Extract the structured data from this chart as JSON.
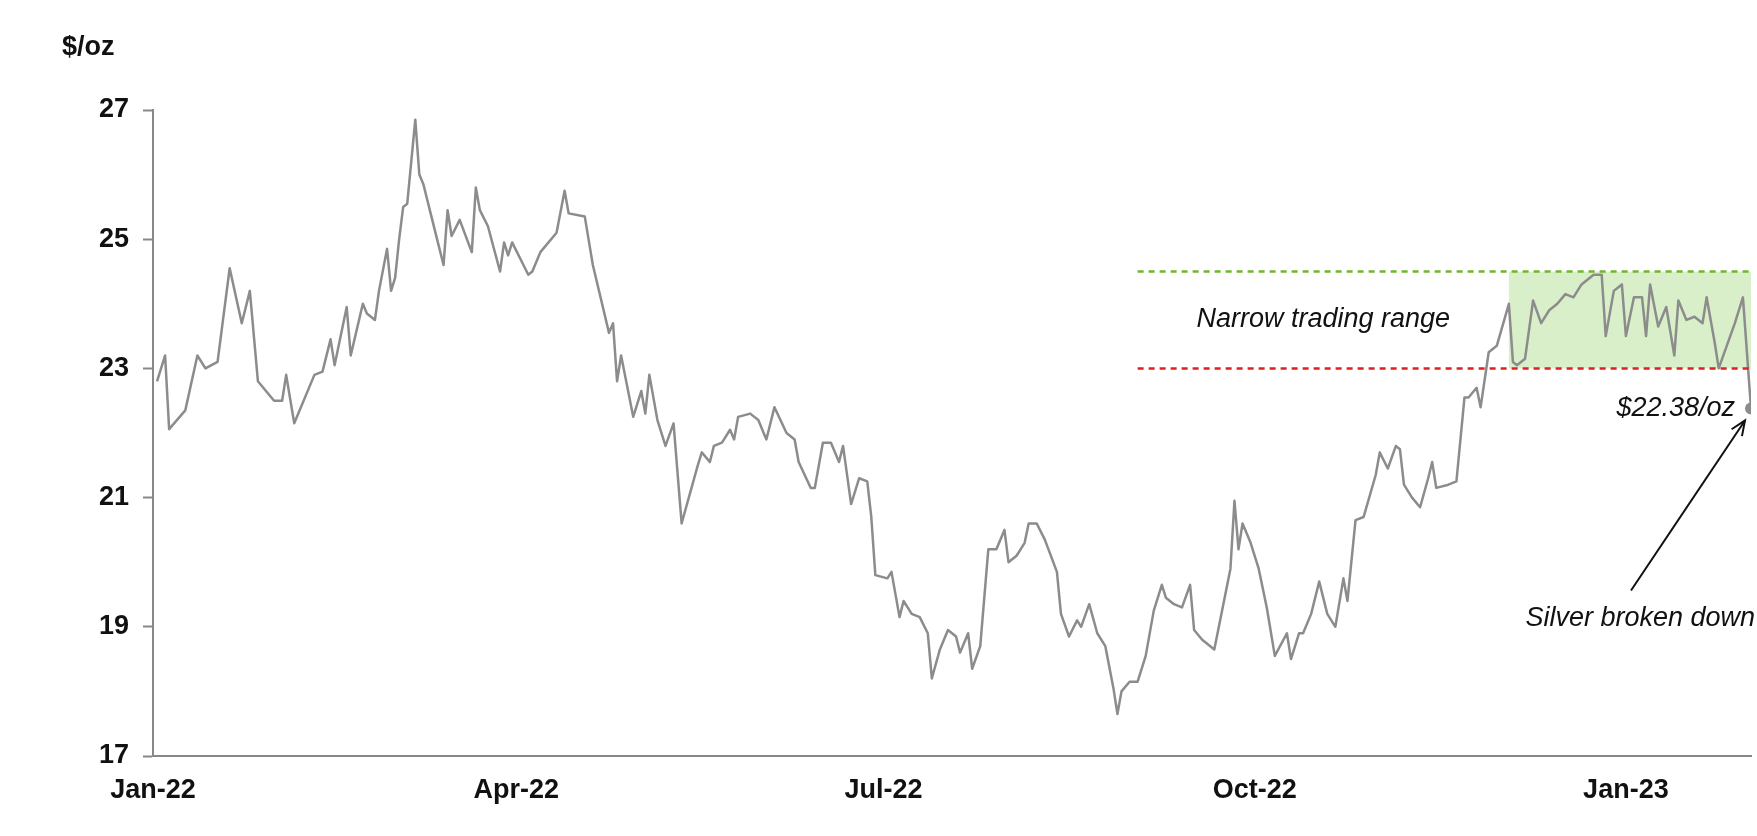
{
  "chart_data": {
    "type": "line",
    "ylabel": "$/oz",
    "xlim": [
      "2022-01-01",
      "2023-02-01"
    ],
    "xticks": [
      {
        "value": "2022-01-01",
        "label": "Jan-22"
      },
      {
        "value": "2022-04-01",
        "label": "Apr-22"
      },
      {
        "value": "2022-07-01",
        "label": "Jul-22"
      },
      {
        "value": "2022-10-01",
        "label": "Oct-22"
      },
      {
        "value": "2023-01-01",
        "label": "Jan-23"
      }
    ],
    "ylim": [
      17,
      27
    ],
    "yticks": [
      17,
      19,
      21,
      23,
      25,
      27
    ],
    "grid": false,
    "legend": false,
    "bands": [
      {
        "axis": "x",
        "from": "2022-12-03",
        "to": "2023-02-01",
        "color": "#d9efc9"
      }
    ],
    "series": [
      {
        "type": "line",
        "color": "#70b62c",
        "line_style": "dashed",
        "x": [
          "2022-09-02",
          "2023-02-01"
        ],
        "values": [
          24.5,
          24.5
        ]
      },
      {
        "type": "line",
        "color": "#e02020",
        "line_style": "dashed",
        "x": [
          "2022-09-02",
          "2023-02-01"
        ],
        "values": [
          23,
          23
        ]
      },
      {
        "type": "line",
        "color": "#8c8c8c",
        "line_style": "solid",
        "x": [
          "2022-01-02",
          "2022-01-04",
          "2022-01-05",
          "2022-01-09",
          "2022-01-12",
          "2022-01-14",
          "2022-01-17",
          "2022-01-20",
          "2022-01-23",
          "2022-01-25",
          "2022-01-27",
          "2022-01-31",
          "2022-02-02",
          "2022-02-03",
          "2022-02-05",
          "2022-02-10",
          "2022-02-12",
          "2022-02-14",
          "2022-02-15",
          "2022-02-18",
          "2022-02-19",
          "2022-02-22",
          "2022-02-23",
          "2022-02-25",
          "2022-02-26",
          "2022-02-28",
          "2022-03-01",
          "2022-03-02",
          "2022-03-03",
          "2022-03-04",
          "2022-03-05",
          "2022-03-07",
          "2022-03-08",
          "2022-03-09",
          "2022-03-11",
          "2022-03-14",
          "2022-03-15",
          "2022-03-16",
          "2022-03-18",
          "2022-03-21",
          "2022-03-22",
          "2022-03-23",
          "2022-03-25",
          "2022-03-28",
          "2022-03-29",
          "2022-03-30",
          "2022-03-31",
          "2022-04-04",
          "2022-04-05",
          "2022-04-07",
          "2022-04-11",
          "2022-04-13",
          "2022-04-14",
          "2022-04-18",
          "2022-04-20",
          "2022-04-24",
          "2022-04-25",
          "2022-04-26",
          "2022-04-27",
          "2022-04-30",
          "2022-05-02",
          "2022-05-03",
          "2022-05-04",
          "2022-05-06",
          "2022-05-08",
          "2022-05-10",
          "2022-05-12",
          "2022-05-16",
          "2022-05-17",
          "2022-05-19",
          "2022-05-20",
          "2022-05-22",
          "2022-05-24",
          "2022-05-25",
          "2022-05-26",
          "2022-05-29",
          "2022-05-31",
          "2022-06-02",
          "2022-06-04",
          "2022-06-07",
          "2022-06-09",
          "2022-06-10",
          "2022-06-13",
          "2022-06-14",
          "2022-06-16",
          "2022-06-18",
          "2022-06-20",
          "2022-06-21",
          "2022-06-23",
          "2022-06-25",
          "2022-06-27",
          "2022-06-28",
          "2022-06-29",
          "2022-07-02",
          "2022-07-03",
          "2022-07-05",
          "2022-07-06",
          "2022-07-08",
          "2022-07-10",
          "2022-07-12",
          "2022-07-13",
          "2022-07-15",
          "2022-07-17",
          "2022-07-19",
          "2022-07-20",
          "2022-07-22",
          "2022-07-23",
          "2022-07-25",
          "2022-07-27",
          "2022-07-29",
          "2022-07-31",
          "2022-08-01",
          "2022-08-03",
          "2022-08-05",
          "2022-08-06",
          "2022-08-08",
          "2022-08-10",
          "2022-08-13",
          "2022-08-14",
          "2022-08-16",
          "2022-08-18",
          "2022-08-19",
          "2022-08-21",
          "2022-08-23",
          "2022-08-25",
          "2022-08-27",
          "2022-08-28",
          "2022-08-29",
          "2022-08-31",
          "2022-09-02",
          "2022-09-04",
          "2022-09-06",
          "2022-09-08",
          "2022-09-09",
          "2022-09-11",
          "2022-09-13",
          "2022-09-15",
          "2022-09-16",
          "2022-09-18",
          "2022-09-19",
          "2022-09-21",
          "2022-09-25",
          "2022-09-26",
          "2022-09-27",
          "2022-09-28",
          "2022-09-30",
          "2022-10-02",
          "2022-10-04",
          "2022-10-06",
          "2022-10-09",
          "2022-10-10",
          "2022-10-12",
          "2022-10-13",
          "2022-10-15",
          "2022-10-17",
          "2022-10-19",
          "2022-10-21",
          "2022-10-23",
          "2022-10-24",
          "2022-10-26",
          "2022-10-28",
          "2022-10-31",
          "2022-11-01",
          "2022-11-03",
          "2022-11-05",
          "2022-11-06",
          "2022-11-07",
          "2022-11-09",
          "2022-11-11",
          "2022-11-13",
          "2022-11-14",
          "2022-11-15",
          "2022-11-18",
          "2022-11-20",
          "2022-11-22",
          "2022-11-23",
          "2022-11-25",
          "2022-11-26",
          "2022-11-28",
          "2022-11-30",
          "2022-12-03",
          "2022-12-04",
          "2022-12-05",
          "2022-12-07",
          "2022-12-09",
          "2022-12-11",
          "2022-12-13",
          "2022-12-15",
          "2022-12-17",
          "2022-12-19",
          "2022-12-21",
          "2022-12-24",
          "2022-12-26",
          "2022-12-27",
          "2022-12-29",
          "2022-12-30",
          "2022-12-31",
          "2023-01-01",
          "2023-01-03",
          "2023-01-05",
          "2023-01-06",
          "2023-01-07",
          "2023-01-09",
          "2023-01-11",
          "2023-01-13",
          "2023-01-14",
          "2023-01-16",
          "2023-01-18",
          "2023-01-20",
          "2023-01-21",
          "2023-01-23",
          "2023-01-24",
          "2023-01-28",
          "2023-01-30",
          "2023-02-01"
        ],
        "values": [
          22.8,
          23.2,
          22.06,
          22.35,
          23.2,
          23.0,
          23.1,
          24.55,
          23.7,
          24.2,
          22.8,
          22.5,
          22.5,
          22.9,
          22.15,
          22.9,
          22.95,
          23.45,
          23.05,
          23.95,
          23.2,
          24.0,
          23.85,
          23.75,
          24.2,
          24.85,
          24.2,
          24.4,
          25.0,
          25.5,
          25.55,
          26.85,
          26.0,
          25.85,
          25.35,
          24.6,
          25.45,
          25.05,
          25.3,
          24.8,
          25.8,
          25.45,
          25.2,
          24.5,
          24.95,
          24.75,
          24.95,
          24.45,
          24.5,
          24.8,
          25.1,
          25.75,
          25.4,
          25.35,
          24.6,
          23.55,
          23.7,
          22.8,
          23.2,
          22.25,
          22.65,
          22.3,
          22.9,
          22.2,
          21.8,
          22.15,
          20.6,
          21.5,
          21.7,
          21.55,
          21.8,
          21.85,
          22.05,
          21.9,
          22.25,
          22.3,
          22.2,
          21.9,
          22.4,
          22.0,
          21.9,
          21.55,
          21.15,
          21.15,
          21.85,
          21.85,
          21.55,
          21.8,
          20.9,
          21.3,
          21.25,
          20.7,
          19.8,
          19.75,
          19.85,
          19.15,
          19.4,
          19.2,
          19.15,
          18.9,
          18.2,
          18.65,
          18.95,
          18.85,
          18.6,
          18.9,
          18.35,
          18.7,
          20.2,
          20.2,
          20.5,
          20.0,
          20.1,
          20.3,
          20.6,
          20.6,
          20.35,
          19.85,
          19.2,
          18.85,
          19.1,
          19.0,
          19.35,
          18.9,
          18.7,
          18.05,
          17.65,
          18.0,
          18.15,
          18.15,
          18.55,
          19.25,
          19.65,
          19.45,
          19.35,
          19.3,
          19.65,
          18.95,
          18.8,
          18.75,
          18.65,
          19.9,
          20.95,
          20.2,
          20.6,
          20.3,
          19.9,
          19.3,
          18.55,
          18.9,
          18.5,
          18.9,
          18.9,
          19.2,
          19.7,
          19.2,
          19.0,
          19.75,
          19.4,
          20.65,
          20.7,
          21.35,
          21.7,
          21.45,
          21.8,
          21.75,
          21.2,
          21.0,
          20.85,
          21.3,
          21.55,
          21.15,
          21.2,
          21.25,
          22.55,
          22.55,
          22.7,
          22.4,
          23.25,
          23.35,
          24.0,
          23.1,
          23.05,
          23.15,
          24.05,
          23.7,
          23.9,
          24.0,
          24.15,
          24.1,
          24.3,
          24.45,
          24.45,
          23.5,
          24.2,
          24.25,
          24.3,
          23.5,
          24.1,
          24.1,
          23.5,
          24.3,
          23.65,
          23.95,
          23.2,
          24.05,
          23.75,
          23.8,
          23.7,
          24.1,
          23.4,
          23.0,
          23.7,
          24.1,
          22.38
        ]
      }
    ],
    "annotations": [
      "Narrow trading range",
      "$22.38/oz",
      "Silver broken down"
    ]
  }
}
